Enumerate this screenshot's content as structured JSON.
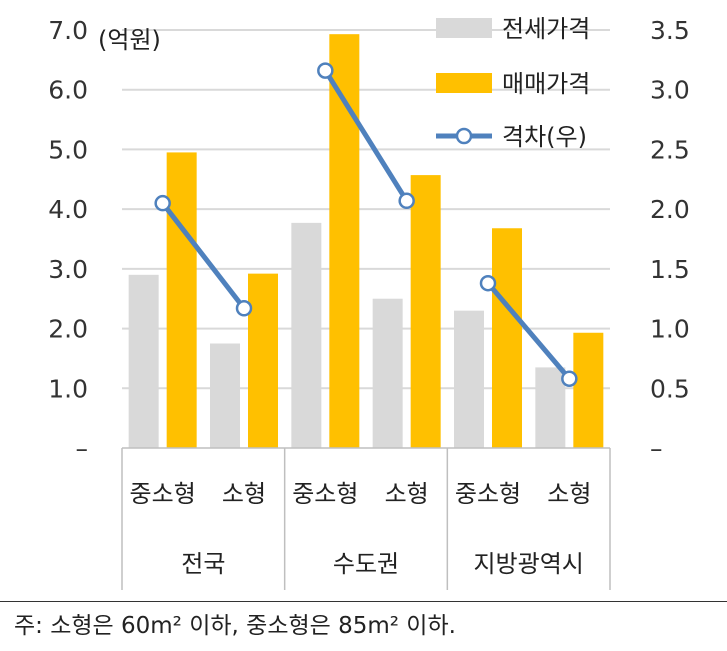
{
  "chart_data": {
    "type": "bar",
    "title": "",
    "unit_label": "(억원)",
    "groups": [
      "전국",
      "수도권",
      "지방광역시"
    ],
    "subcategories": [
      "중소형",
      "소형"
    ],
    "categories": [
      "전국 중소형",
      "전국 소형",
      "수도권 중소형",
      "수도권 소형",
      "지방광역시 중소형",
      "지방광역시 소형"
    ],
    "series": [
      {
        "name": "전세가격",
        "axis": "left",
        "type": "bar",
        "color": "#d9d9d9",
        "values": [
          2.9,
          1.75,
          3.77,
          2.5,
          2.3,
          1.35
        ]
      },
      {
        "name": "매매가격",
        "axis": "left",
        "type": "bar",
        "color": "#ffc000",
        "values": [
          4.95,
          2.92,
          6.93,
          4.57,
          3.68,
          1.93
        ]
      },
      {
        "name": "격차(우)",
        "axis": "right",
        "type": "line",
        "color": "#4f81bd",
        "values": [
          2.05,
          1.17,
          3.16,
          2.07,
          1.38,
          0.58
        ]
      }
    ],
    "y_left": {
      "lim": [
        0,
        7
      ],
      "ticks": [
        "–",
        "1.0",
        "2.0",
        "3.0",
        "4.0",
        "5.0",
        "6.0",
        "7.0"
      ]
    },
    "y_right": {
      "lim": [
        0,
        3.5
      ],
      "ticks": [
        "–",
        "0.5",
        "1.0",
        "1.5",
        "2.0",
        "2.5",
        "3.0",
        "3.5"
      ]
    },
    "grid": true,
    "legend": "top-right"
  },
  "note": "주: 소형은 60m² 이하, 중소형은 85m² 이하."
}
